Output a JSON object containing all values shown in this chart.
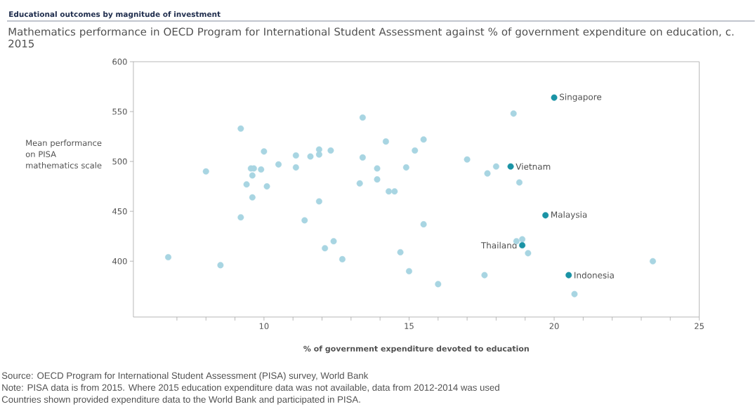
{
  "chart_data": {
    "type": "scatter",
    "title": "Educational outcomes by magnitude of investment",
    "subtitle": "Mathematics performance in OECD Program for International Student Assessment against % of government expenditure on education, c. 2015",
    "xlabel": "% of government expenditure devoted to education",
    "ylabel": "Mean performance on PISA mathematics scale",
    "marker": "circle",
    "xlim": [
      5.5,
      25
    ],
    "ylim": [
      344,
      600
    ],
    "xticks": [
      {
        "value": 7,
        "label": null
      },
      {
        "value": 8,
        "label": null
      },
      {
        "value": 9,
        "label": null
      },
      10,
      {
        "value": 11,
        "label": null
      },
      {
        "value": 12,
        "label": null
      },
      {
        "value": 13,
        "label": null
      },
      {
        "value": 14,
        "label": null
      },
      15,
      {
        "value": 16,
        "label": null
      },
      {
        "value": 17,
        "label": null
      },
      {
        "value": 18,
        "label": null
      },
      {
        "value": 19,
        "label": null
      },
      20,
      {
        "value": 21,
        "label": null
      },
      {
        "value": 22,
        "label": null
      },
      {
        "value": 23,
        "label": null
      },
      {
        "value": 24,
        "label": null
      },
      25
    ],
    "yticks": [
      400,
      450,
      500,
      550,
      600
    ],
    "series": [
      {
        "color": "#a8d5e2",
        "x": [
          9.2,
          8.0,
          10.0,
          11.1,
          11.6,
          11.9,
          11.9,
          12.3,
          10.5,
          11.1,
          9.55,
          9.65,
          9.9,
          9.6,
          9.4,
          10.1,
          9.6,
          11.9,
          9.2,
          11.4,
          12.4,
          12.1,
          6.7,
          8.5,
          13.4,
          14.2,
          15.5,
          15.2,
          13.4,
          13.9,
          14.9,
          13.9,
          13.3,
          14.3,
          14.5,
          17.0,
          17.7,
          18.0,
          18.8,
          18.6,
          15.5,
          12.7,
          14.7,
          15.0,
          16.0,
          17.6,
          18.7,
          18.9,
          19.1,
          23.4,
          20.7
        ],
        "values": [
          533,
          490,
          510,
          506,
          505,
          512,
          507,
          511,
          497,
          494,
          493,
          493,
          492,
          486,
          477,
          475,
          464,
          460,
          444,
          441,
          420,
          413,
          404,
          396,
          544,
          520,
          522,
          511,
          504,
          493,
          494,
          482,
          478,
          470,
          470,
          502,
          488,
          495,
          479,
          548,
          437,
          402,
          409,
          390,
          377,
          386,
          420,
          422,
          408,
          400,
          367
        ]
      },
      {
        "color": "#1a93a5",
        "x": [
          20.0,
          18.5,
          19.7,
          18.9,
          20.5
        ],
        "values": [
          564,
          495,
          446,
          416,
          386
        ]
      }
    ],
    "annotations": [
      {
        "text": "Singapore",
        "x": 20.0,
        "y": 564
      },
      {
        "text": "Vietnam",
        "x": 18.5,
        "y": 495
      },
      {
        "text": "Malaysia",
        "x": 19.7,
        "y": 446
      },
      {
        "text": "Thailand",
        "x": 18.9,
        "y": 416
      },
      {
        "text": "Indonesia",
        "x": 20.5,
        "y": 386
      },
      "Source: OECD Program for International Student Assessment (PISA) survey, World Bank",
      "Note: PISA data is from 2015. Where 2015 education expenditure data was not available, data from 2012-2014 was used",
      "Countries shown provided expenditure data to the World Bank and participated in PISA."
    ]
  }
}
